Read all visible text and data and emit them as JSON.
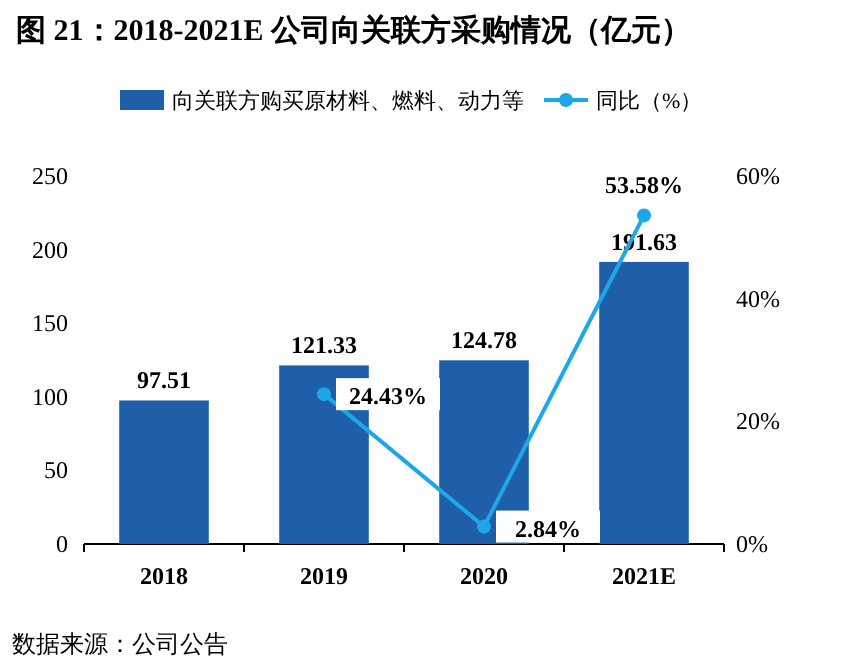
{
  "chart_data": {
    "type": "bar",
    "title": "图 21：2018-2021E 公司向关联方采购情况（亿元）",
    "categories": [
      "2018",
      "2019",
      "2020",
      "2021E"
    ],
    "series": [
      {
        "name": "向关联方购买原材料、燃料、动力等",
        "color": "#1f5ea8",
        "values": [
          97.51,
          121.33,
          124.78,
          191.63
        ],
        "value_labels": [
          "97.51",
          "121.33",
          "124.78",
          "191.63"
        ]
      },
      {
        "name": "同比（%）",
        "type": "line",
        "axis": "y2",
        "color": "#1ea7e8",
        "marker": "circle",
        "values": [
          null,
          24.43,
          2.84,
          53.58
        ],
        "value_labels": [
          null,
          "24.43%",
          "2.84%",
          "53.58%"
        ]
      }
    ],
    "ylim": [
      0,
      250
    ],
    "yticks": [
      0,
      50,
      100,
      150,
      200,
      250
    ],
    "y2lim": [
      0,
      60
    ],
    "y2ticks": [
      {
        "value": 0,
        "label": "0%"
      },
      {
        "value": 20,
        "label": "20%"
      },
      {
        "value": 40,
        "label": "40%"
      },
      {
        "value": 60,
        "label": "60%"
      }
    ],
    "grid": false,
    "legend": "top",
    "annotations": [
      "数据来源：公司公告"
    ]
  }
}
